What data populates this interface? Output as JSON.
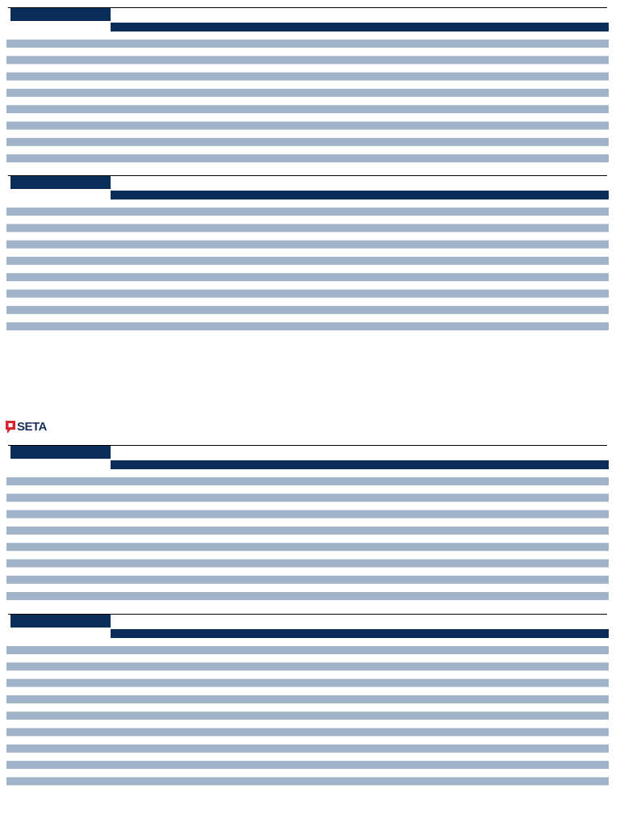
{
  "logo": {
    "text": "SETA"
  }
}
